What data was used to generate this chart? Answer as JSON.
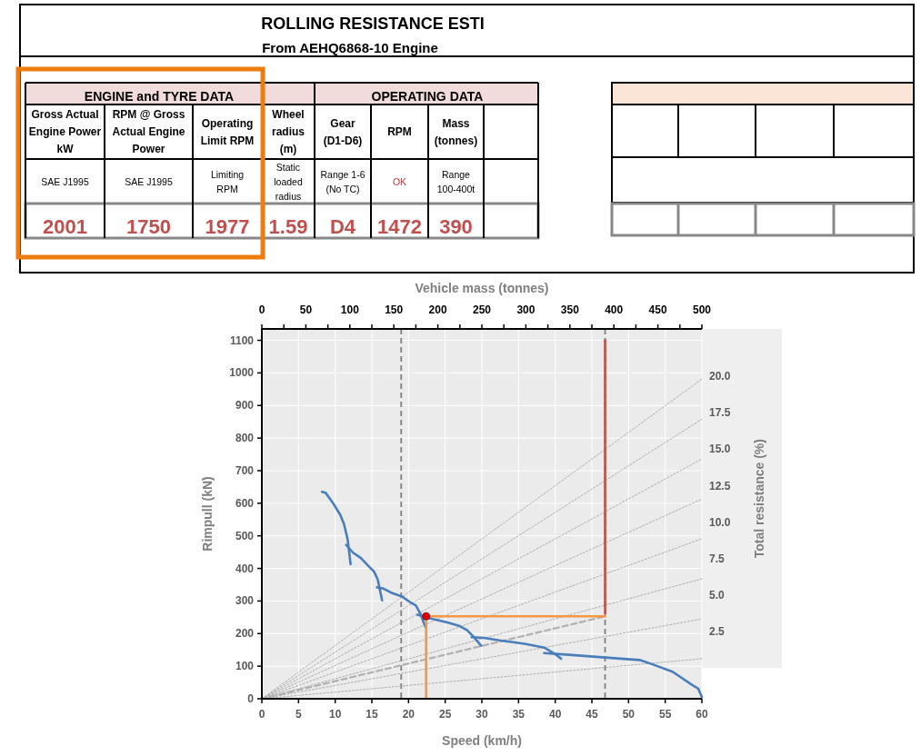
{
  "chart_data": {
    "type": "line",
    "title": "ROLLING RESISTANCE ESTI",
    "subtitle": "From AEHQ6868-10 Engine",
    "annotations": [
      "ENGINE and TYRE DATA",
      "OPERATING DATA",
      "Gross Actual Engine Power kW",
      "RPM @ Gross Actual Engine Power",
      "Operating Limit RPM",
      "Wheel radius (m)",
      "Gear (D1-D6)",
      "RPM",
      "Mass (tonnes)",
      "SAE J1995",
      "SAE J1995",
      "Limiting RPM",
      "Static loaded radius",
      "Range 1-6 (No TC)",
      "OK",
      "Range 100-400t",
      "2001",
      "1750",
      "1977",
      "1.59",
      "D4",
      "1472",
      "390"
    ],
    "xlabel": "Speed (km/h)",
    "ylabel": "Rimpull (kN)",
    "x2label": "Vehicle mass (tonnes)",
    "y2label": "Total resistance (%)",
    "xlim": [
      0,
      60
    ],
    "xticks": [
      0,
      5,
      10,
      15,
      20,
      25,
      30,
      35,
      40,
      45,
      50,
      55,
      60
    ],
    "ylim": [
      0,
      1135
    ],
    "yticks": [
      0,
      100,
      200,
      300,
      400,
      500,
      600,
      700,
      800,
      900,
      1000,
      1100
    ],
    "x2lim": [
      0,
      500
    ],
    "x2ticks": [
      0,
      {
        "value": 25,
        "label": null
      },
      50,
      {
        "value": 75,
        "label": null
      },
      100,
      {
        "value": 125,
        "label": null
      },
      150,
      {
        "value": 175,
        "label": null
      },
      200,
      {
        "value": 225,
        "label": null
      },
      250,
      {
        "value": 275,
        "label": null
      },
      300,
      {
        "value": 325,
        "label": null
      },
      350,
      {
        "value": 375,
        "label": null
      },
      400,
      {
        "value": 425,
        "label": null
      },
      450,
      {
        "value": 475,
        "label": null
      },
      500
    ],
    "y2lim": [
      -2.1,
      23.25
    ],
    "y2ticks": [
      {
        "value": 2.5,
        "label": "2.5"
      },
      {
        "value": 5,
        "label": "5.0"
      },
      {
        "value": 7.5,
        "label": "7.5"
      },
      {
        "value": 10,
        "label": "10.0"
      },
      {
        "value": 12.5,
        "label": "12.5"
      },
      {
        "value": 15,
        "label": "15.0"
      },
      {
        "value": 17.5,
        "label": "17.5"
      },
      {
        "value": 20,
        "label": "20.0"
      }
    ],
    "grid": true,
    "ref_lines": [
      {
        "axis": "x",
        "value": 19,
        "color": "#7f7f7f",
        "line_style": "dashed"
      },
      {
        "axis": "x2",
        "value": 390,
        "color": "#7f7f7f",
        "line_style": "dashed"
      }
    ],
    "series": [
      {
        "type": "line",
        "color": "#a6a6a6",
        "line_style": "dotted",
        "x": [
          0,
          60
        ],
        "values": [
          0,
          123
        ]
      },
      {
        "type": "line",
        "color": "#a6a6a6",
        "line_style": "dotted",
        "x": [
          0,
          60
        ],
        "values": [
          0,
          245
        ]
      },
      {
        "type": "line",
        "color": "#a6a6a6",
        "line_style": "dotted",
        "x": [
          0,
          60
        ],
        "values": [
          0,
          368
        ]
      },
      {
        "type": "line",
        "color": "#a6a6a6",
        "line_style": "dotted",
        "x": [
          0,
          60
        ],
        "values": [
          0,
          491
        ]
      },
      {
        "type": "line",
        "color": "#a6a6a6",
        "line_style": "dotted",
        "x": [
          0,
          60
        ],
        "values": [
          0,
          613
        ]
      },
      {
        "type": "line",
        "color": "#a6a6a6",
        "line_style": "dotted",
        "x": [
          0,
          60
        ],
        "values": [
          0,
          736
        ]
      },
      {
        "type": "line",
        "color": "#a6a6a6",
        "line_style": "dotted",
        "x": [
          0,
          60
        ],
        "values": [
          0,
          858
        ]
      },
      {
        "type": "line",
        "color": "#a6a6a6",
        "line_style": "dotted",
        "x": [
          0,
          60
        ],
        "values": [
          0,
          981
        ]
      },
      {
        "type": "line",
        "color": "#b0b0b0",
        "line_style": "dashed",
        "x": [
          0,
          46.8
        ],
        "values": [
          0,
          253
        ]
      },
      {
        "type": "line",
        "color": "#4a7ebb",
        "line_style": "solid",
        "x": [
          8.2,
          8.7,
          9.6,
          10.7,
          11.2,
          11.7,
          12.1
        ],
        "values": [
          635,
          632,
          604,
          564,
          536,
          489,
          413
        ]
      },
      {
        "type": "line",
        "color": "#4a7ebb",
        "line_style": "solid",
        "x": [
          11.5,
          12.4,
          13.5,
          14.5,
          15.3,
          15.8,
          16.4
        ],
        "values": [
          472,
          449,
          432,
          408,
          390,
          366,
          302
        ]
      },
      {
        "type": "line",
        "color": "#4a7ebb",
        "line_style": "solid",
        "x": [
          15.7,
          16.6,
          17.8,
          19.1,
          20.3,
          21,
          21.6,
          22.3
        ],
        "values": [
          342,
          338,
          324,
          314,
          295,
          286,
          262,
          220
        ]
      },
      {
        "type": "line",
        "color": "#4a7ebb",
        "line_style": "solid",
        "x": [
          21.2,
          23.3,
          25.3,
          27,
          28,
          28.8,
          29.9
        ],
        "values": [
          258,
          245,
          234,
          223,
          210,
          192,
          163
        ]
      },
      {
        "type": "line",
        "color": "#4a7ebb",
        "line_style": "solid",
        "x": [
          28.6,
          30.3,
          32.4,
          34.5,
          36,
          38.5,
          39.8,
          40.8
        ],
        "values": [
          189,
          187,
          179,
          173,
          168,
          157,
          140,
          123
        ]
      },
      {
        "type": "line",
        "color": "#4a7ebb",
        "line_style": "solid",
        "x": [
          38.5,
          41.9,
          46,
          50.2,
          51.5,
          53.1,
          56,
          58.5,
          59.5,
          60
        ],
        "values": [
          140,
          135,
          128,
          121,
          119,
          107,
          83,
          45,
          31,
          5
        ]
      },
      {
        "color": "#f79646",
        "line_style": "solid",
        "x": [
          22.4,
          46.8
        ],
        "values": [
          253,
          253
        ]
      },
      {
        "color": "#f79646",
        "line_style": "solid",
        "x": [
          22.4,
          22.4
        ],
        "values": [
          253,
          0
        ]
      },
      {
        "color": "#c0504d",
        "line_style": "solid",
        "x": [
          46.8,
          46.8
        ],
        "values": [
          1100,
          262
        ]
      },
      {
        "type": "scatter",
        "color": "#e00000",
        "marker": "circle",
        "x": [
          22.4
        ],
        "values": [
          253
        ]
      }
    ]
  }
}
